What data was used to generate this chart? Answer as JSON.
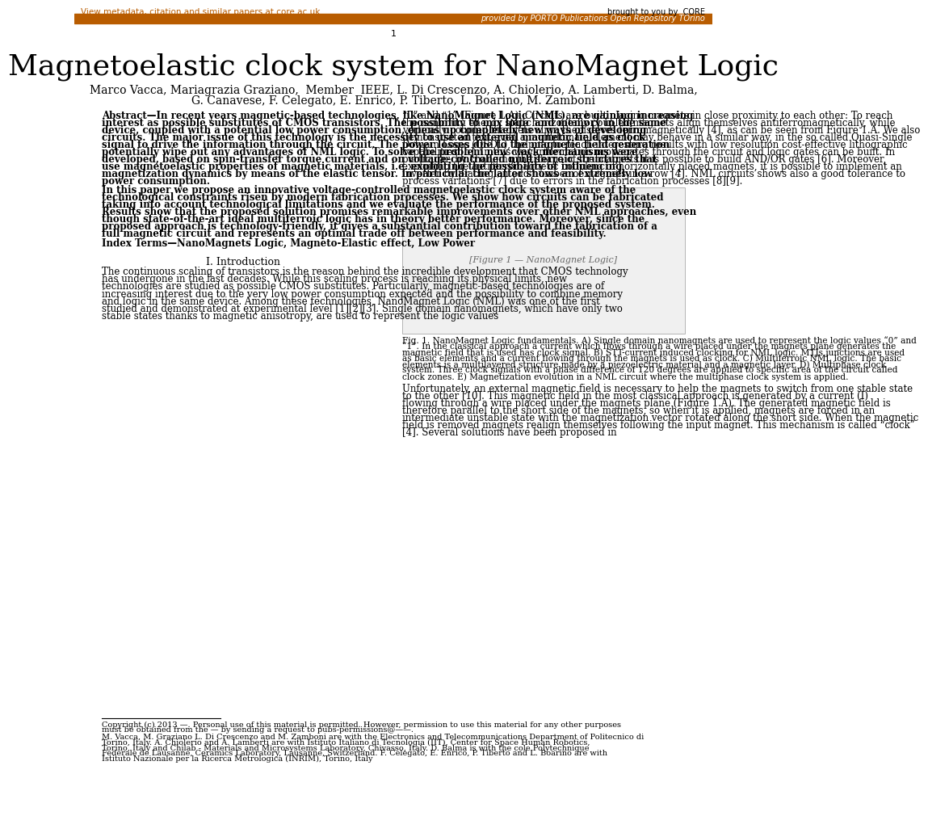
{
  "bg_color": "#ffffff",
  "header_bar_color": "#b85c00",
  "header_text_color": "#b85c00",
  "header_bar_text": "provided by PORTO Publications Open Repository TOrino",
  "header_link_text": "View metadata, citation and similar papers at core.ac.uk",
  "core_text": "brought to you by  CORE",
  "page_number": "1",
  "title": "Magnetoelastic clock system for NanoMagnet Logic",
  "authors_line1": "Marco Vacca, Mariagrazia Graziano,  Member  IEEE, L. Di Crescenzo, A. Chiolerio, A. Lamberti, D. Balma,",
  "authors_line2": "G. Canavese, F. Celegato, E. Enrico, P. Tiberto, L. Boarino, M. Zamboni",
  "abstract_intro": "Abstract—In recent years magnetic-based technologies, like NanoMagnet Logic (NML), are gaining increasing interest as possible substitutes of CMOS transistors. The possibility to mix logic and memory in the same device, coupled with a potential low power consumption, opens up completely new ways of developing circuits. The major issue of this technology is the necessity to use an external magnetic field as clock signal to drive the information through the circuit. The power losses due to the magnetic field generation potentially wipe out any advantages of NML logic. To solve the problem new clock mechanisms were developed, based on spin-transfer torque current and on voltage-controlled multiferroic structures that use magnetoelastic properties of magnetic materials, i.e. exploiting the possibility of influencing magnetization dynamics by means of the elastic tensor. In particular the latter shows an extremely low power consumption.",
  "abstract_para2": "In this paper we propose an innovative voltage-controlled magnetoelastic clock system aware of the technological constraints risen by modern fabrication processes. We show how circuits can be fabricated taking into account technological limitations and we evaluate the performance of the proposed system. Results show that the proposed solution promises remarkable improvements over other NML approaches, even though state-of-the-art ideal multiferroic logic has in theory better performance. Moreover, since the proposed approach is technology-friendly, it gives a substantial contribution toward the fabrication of a full magnetic circuit and represents an optimal trade off between performance and feasibility.",
  "index_terms": "Index Terms—NanoMagnets Logic, Magneto-Elastic effect, Low Power",
  "section1_title": "I. Introduction",
  "intro_text": "The continuous scaling of transistors is the reason behind the incredible development that CMOS technology has undergone in the last decades. While this scaling process is reaching its physical limits, new technologies are studied as possible CMOS substitutes. Particularly, magnetic-based technologies are of increasing interest due to the very low power consumption expected and the possibility to combine memory and logic in the same device. Among these technologies, NanoMagnet Logic (NML) was one of the first studied and demonstrated at experimental level [1][2][3]. Single domain nanomagnets, which have only two stable states thanks to magnetic anisotropy, are used to represent the logic values",
  "right_col_intro": "“0” and “1” (Figure 1.A). Circuits are built placing magnets in close proximity to each other: To reach the minimum energy state horizontally coupled magnets align themselves antiferromagnetically, while vertically coupled magnets align themselves ferromagnetically [4], as can be seen from Figure 1.A. We also demonstrated that even a multidomain element may behave in a similar way, in the so called Quasi-Single Domain Logic (QSDL), helping to reach interesting results with low resolution cost-effective lithographic capabilities [5]. In this way information propagates through the circuit and logic gates can be built. In particular, by changing the shape of the magnets it is possible to build AND/OR gates [6]. Moreover, exploiting the antiferromagnetic coupling of horizontally placed magnets, it is possible to implement an inverter by placing an odd number of magnets in a row [4]. NML circuits shows also a good tolerance to process variations [7] due to errors in the fabrication processes [8][9].",
  "fig_caption": "Fig. 1.   NanoMagnet Logic fundamentals. A) Single domain nanomagnets are used to represent the logic values “0” and “1”. In the classical approach a current which flows through a wire placed under the magnets plane generates the magnetic field that is used has clock signal. B) STT-current induced clocking for NML logic. MTJs junctions are used as basic elements and a current flowing through the magnets is used as clock. C) Multiferroic NML logic. The basic elements is a multilayered structure made by a piezoelectric material and a magnetic layer. D) Multiphase clock system. Three clock signals with a phase difference of 120 degrees are applied to specific area of the circuit called clock zones. E) Magnetization evolution in a NML circuit where the multiphase clock system is applied.",
  "right_col_para2": "Unfortunately, an external magnetic field is necessary to help the magnets to switch from one stable state to the other [10]. This magnetic field in the most classical approach is generated by a current (I) flowing through a wire placed under the magnets plane (Figure 1.A). The generated magnetic field is therefore parallel to the short side of the magnets, so when it is applied, magnets are forced in an intermediate unstable state with the magnetization vector rotated along the short side. When the magnetic field is removed magnets realign themselves following the input magnet. This mechanism is called “clock” [4]. Several solutions have been proposed in",
  "footnote_copyright": "Copyright (c) 2013 —. Personal use of this material is permitted. However, permission to use this material for any other purposes must be obtained from the — by sending a request to pubs-permissions@——.",
  "footnote_authors": "M. Vacca, M. Graziano L. Di Crescenzo and M. Zamboni are with the Electronics and Telecommunications Department of Politecnico di Torino, Italy. A. Chiolerio and A. Lamberti are with Istituto Italiano di Tecnologia (IIT), Center for Space Human Robotics, Torino, Italy and Chilab - Materials and Microsystems Laboratory, Chivasso, Italy. D. Balma is with the cole Polytechnique Federale de Lausanne, Ceramics Laboratory, Lausanne, Switzerland. F. Celegato, E. Enrico, P. Tiberto and L. Boarino are with Istituto Nazionale per la Ricerca Metrologica (INRIM), Torino, Italy"
}
